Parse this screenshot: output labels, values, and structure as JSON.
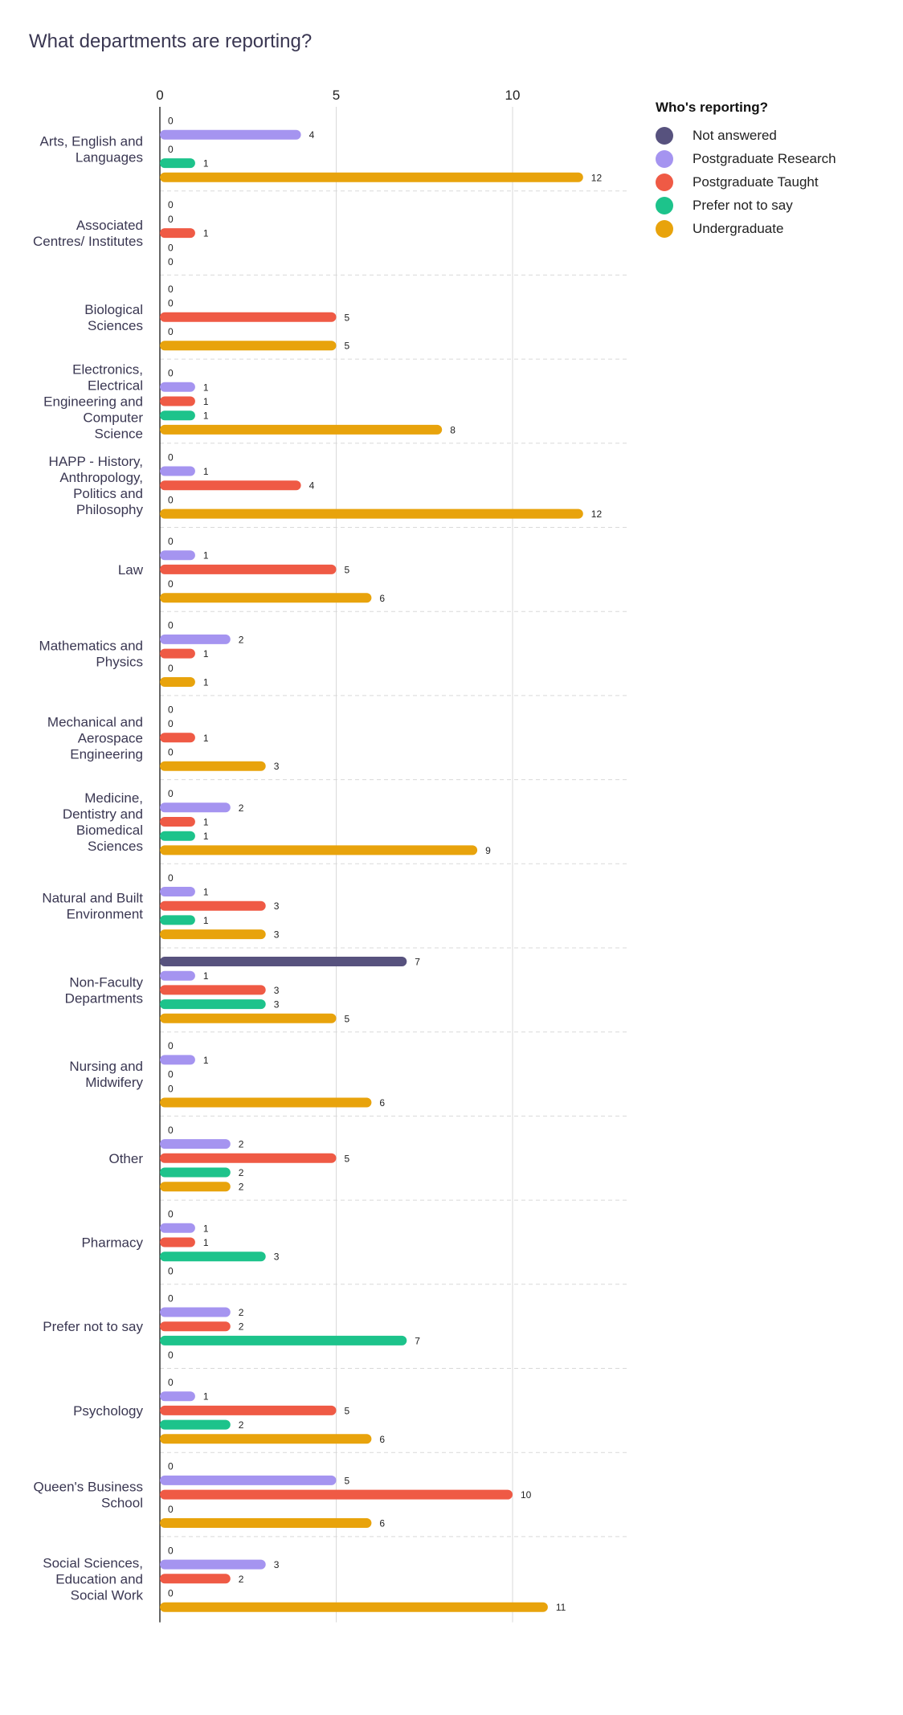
{
  "chart_data": {
    "type": "bar",
    "orientation": "horizontal",
    "title": "What departments are reporting?",
    "legend_title": "Who's reporting?",
    "legend_position": "top-right",
    "xlim": [
      0,
      13
    ],
    "xticks": [
      0,
      5,
      10
    ],
    "grid": true,
    "categories": [
      [
        "Arts, English and",
        "Languages"
      ],
      [
        "Associated",
        "Centres/ Institutes"
      ],
      [
        "Biological",
        "Sciences"
      ],
      [
        "Electronics,",
        "Electrical",
        "Engineering and",
        "Computer",
        "Science"
      ],
      [
        "HAPP - History,",
        "Anthropology,",
        "Politics and",
        "Philosophy"
      ],
      [
        "Law"
      ],
      [
        "Mathematics and",
        "Physics"
      ],
      [
        "Mechanical and",
        "Aerospace",
        "Engineering"
      ],
      [
        "Medicine,",
        "Dentistry and",
        "Biomedical",
        "Sciences"
      ],
      [
        "Natural and Built",
        "Environment"
      ],
      [
        "Non-Faculty",
        "Departments"
      ],
      [
        "Nursing and",
        "Midwifery"
      ],
      [
        "Other"
      ],
      [
        "Pharmacy"
      ],
      [
        "Prefer not to say"
      ],
      [
        "Psychology"
      ],
      [
        "Queen's Business",
        "School"
      ],
      [
        "Social Sciences,",
        "Education and",
        "Social Work"
      ]
    ],
    "series": [
      {
        "name": "Not answered",
        "color": "#57527e",
        "values": [
          0,
          0,
          0,
          0,
          0,
          0,
          0,
          0,
          0,
          0,
          7,
          0,
          0,
          0,
          0,
          0,
          0,
          0
        ]
      },
      {
        "name": "Postgraduate Research",
        "color": "#a594f0",
        "values": [
          4,
          0,
          0,
          1,
          1,
          1,
          2,
          0,
          2,
          1,
          1,
          1,
          2,
          1,
          2,
          1,
          5,
          3
        ]
      },
      {
        "name": "Postgraduate Taught",
        "color": "#ef5a45",
        "values": [
          0,
          1,
          5,
          1,
          4,
          5,
          1,
          1,
          1,
          3,
          3,
          0,
          5,
          1,
          2,
          5,
          10,
          2
        ]
      },
      {
        "name": "Prefer not to say",
        "color": "#1dc38b",
        "values": [
          1,
          0,
          0,
          1,
          0,
          0,
          0,
          0,
          1,
          1,
          3,
          0,
          2,
          3,
          7,
          2,
          0,
          0
        ]
      },
      {
        "name": "Undergraduate",
        "color": "#e8a30c",
        "values": [
          12,
          0,
          5,
          8,
          12,
          6,
          1,
          3,
          9,
          3,
          5,
          6,
          2,
          0,
          0,
          6,
          6,
          11
        ]
      }
    ]
  }
}
